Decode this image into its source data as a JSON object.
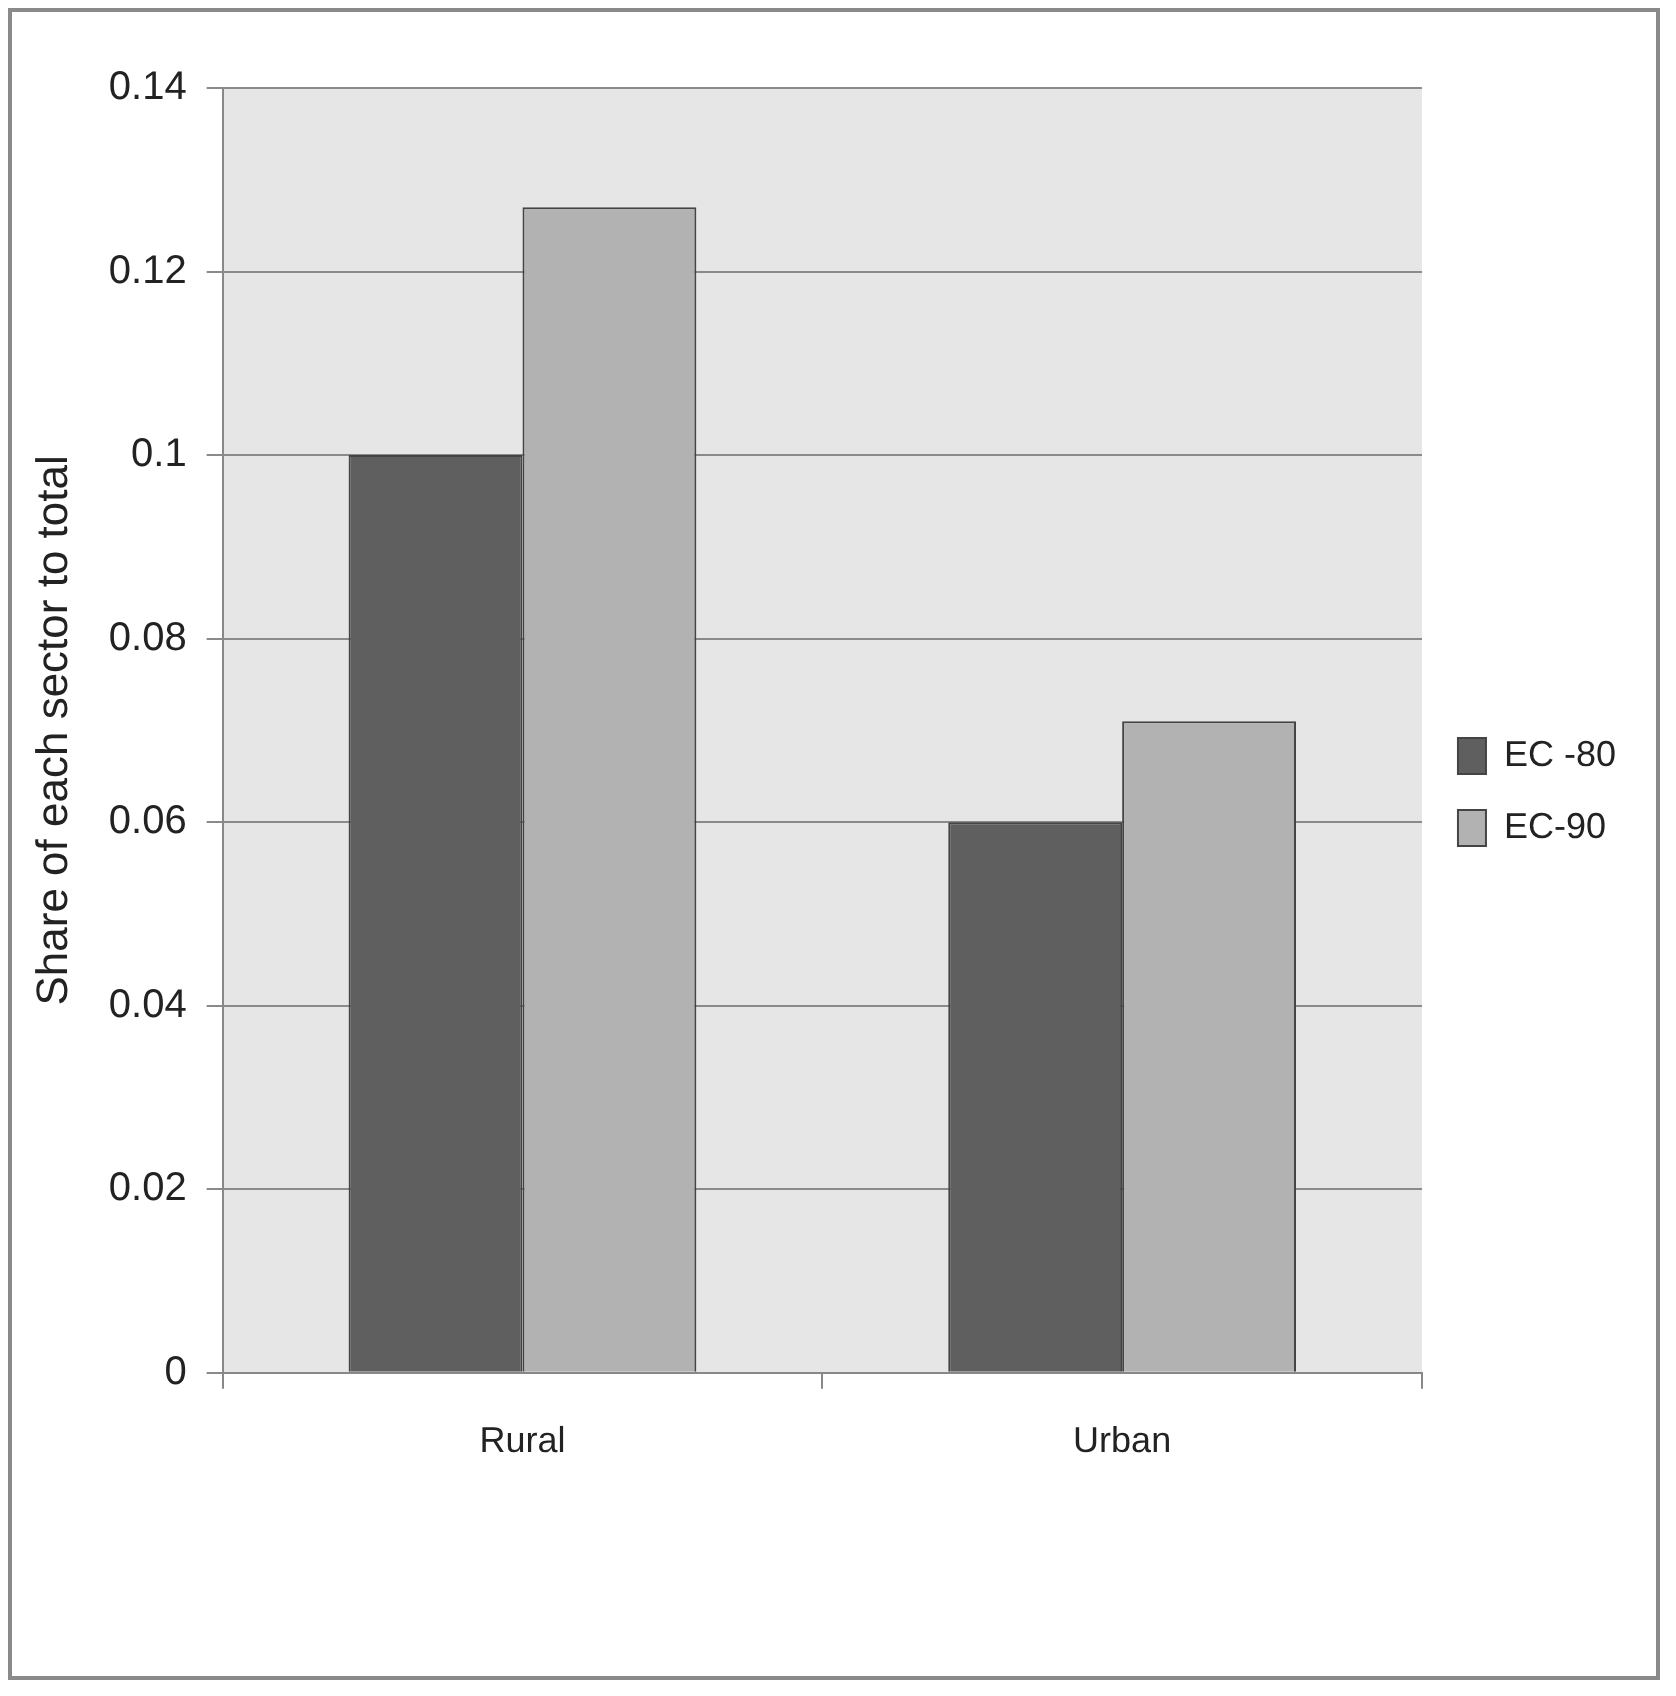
{
  "chart_data": {
    "type": "bar",
    "ylabel": "Share of each sector to total",
    "categories": [
      "Rural",
      "Urban"
    ],
    "series": [
      {
        "name": "EC -80",
        "color": "#5f5f5f",
        "values": [
          0.1,
          0.06
        ]
      },
      {
        "name": "EC-90",
        "color": "#b2b2b2",
        "values": [
          0.127,
          0.071
        ]
      }
    ],
    "ylim": [
      0,
      0.14
    ],
    "yticks": [
      0,
      0.02,
      0.04,
      0.06,
      0.08,
      0.1,
      0.12,
      0.14
    ],
    "grid": "y",
    "legend": "right"
  }
}
